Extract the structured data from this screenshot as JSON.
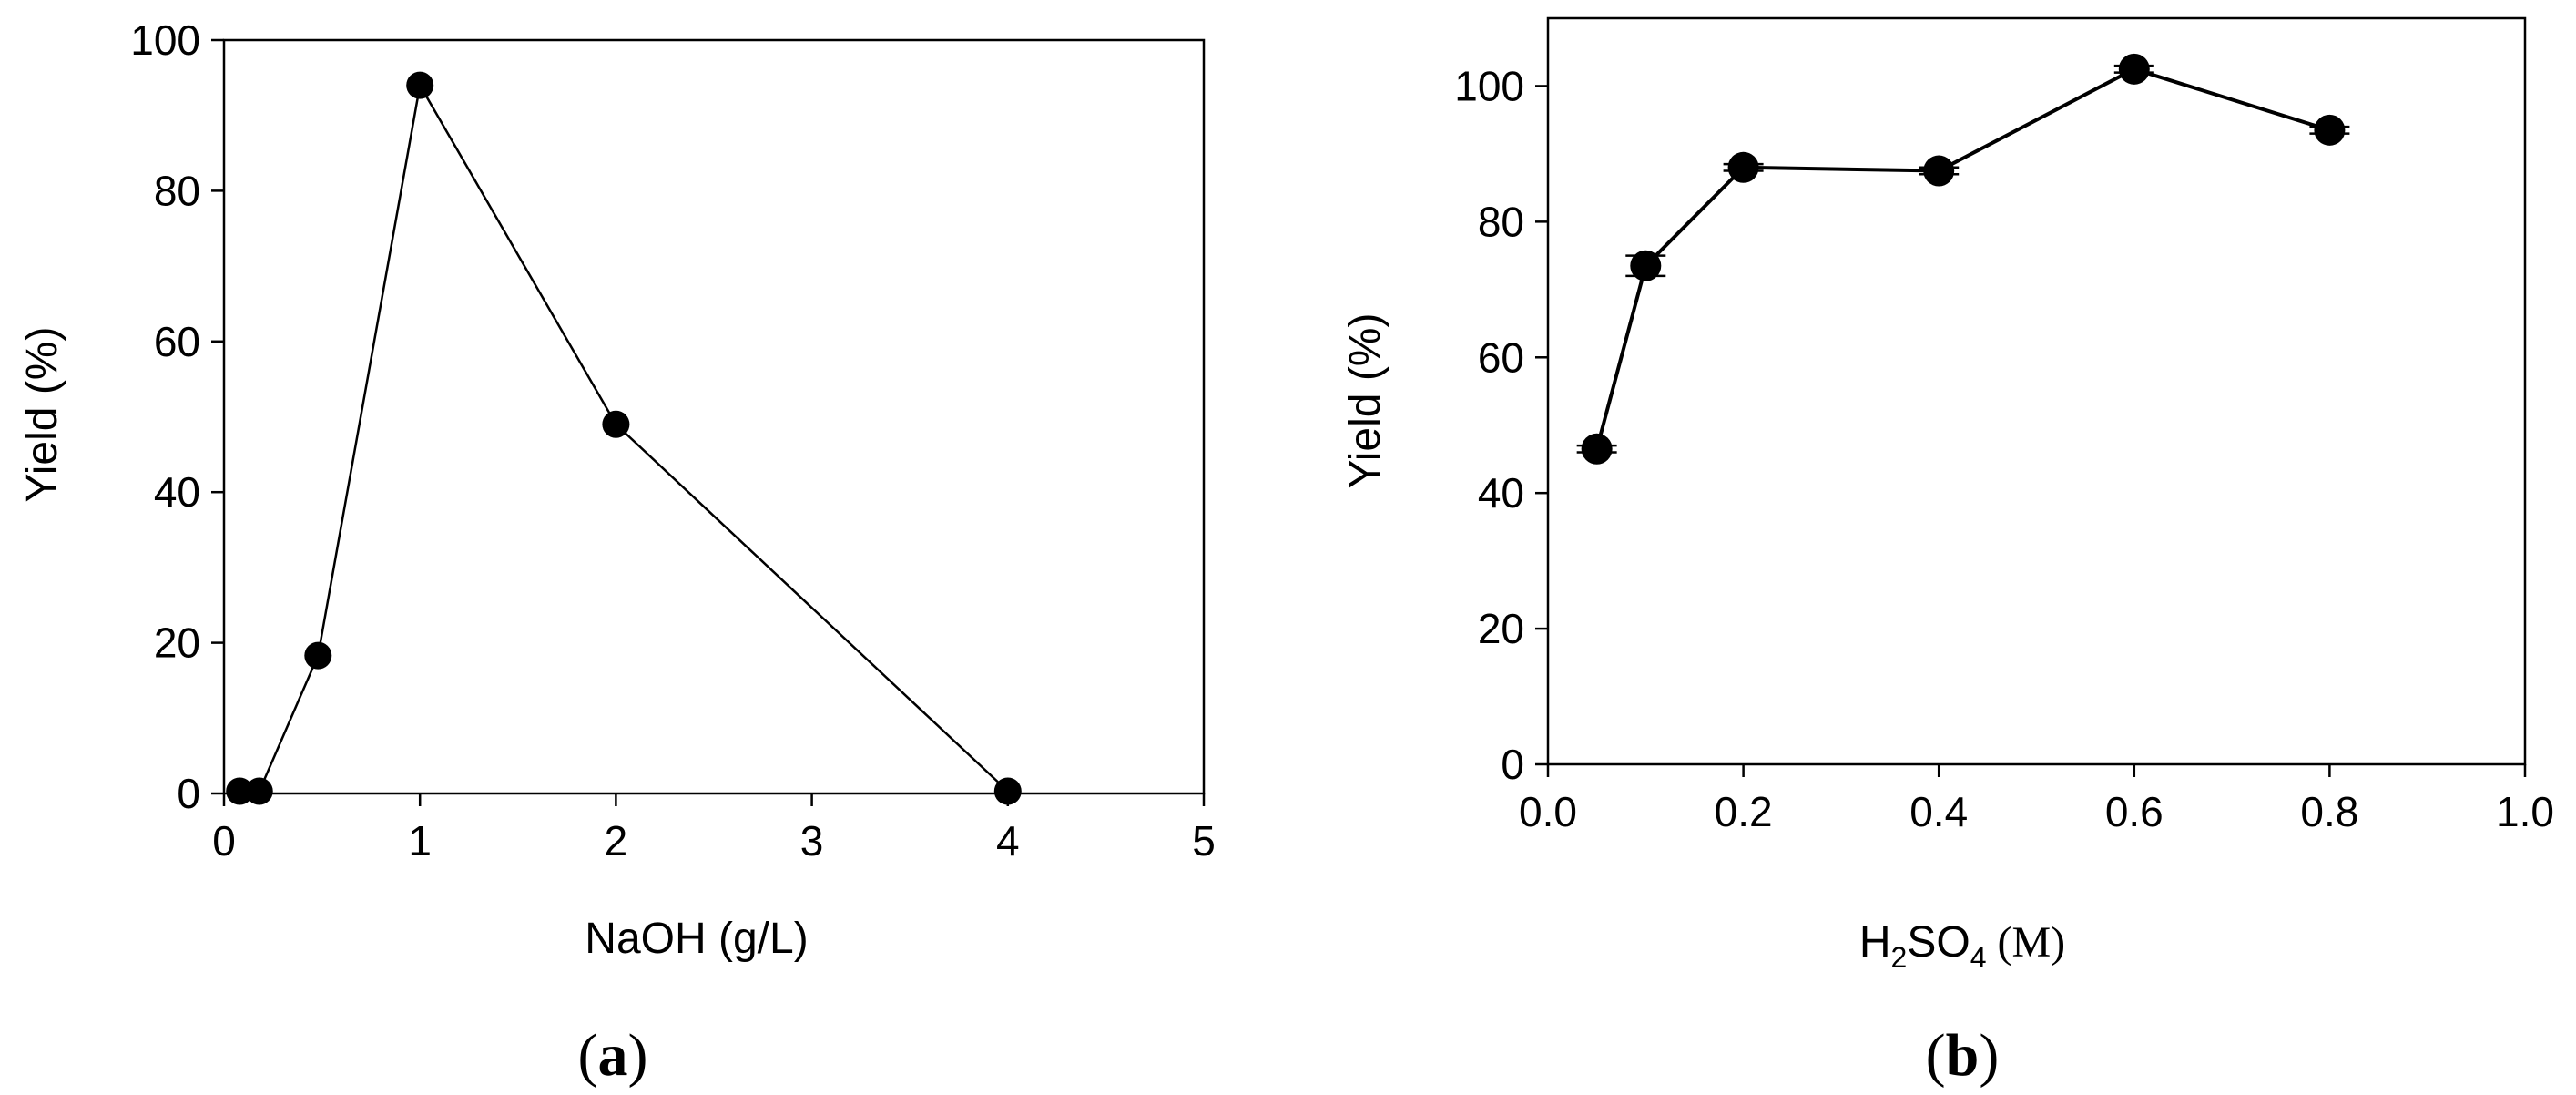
{
  "chart_data": [
    {
      "type": "line",
      "panel_label": "a",
      "xlabel": "NaOH (g/L)",
      "ylabel": "Yield (%)",
      "xlim": [
        0,
        5
      ],
      "ylim": [
        0,
        100
      ],
      "xticks": [
        0,
        1,
        2,
        3,
        4,
        5
      ],
      "yticks": [
        0,
        20,
        40,
        60,
        80,
        100
      ],
      "x_tick_labels": [
        "0",
        "1",
        "2",
        "3",
        "4",
        "5"
      ],
      "y_tick_labels": [
        "0",
        "20",
        "40",
        "60",
        "80",
        "100"
      ],
      "grid": false,
      "series": [
        {
          "x": [
            0.08,
            0.18,
            0.48,
            1.0,
            2.0,
            4.0
          ],
          "y": [
            0.3,
            0.3,
            18.3,
            94,
            49,
            0.3
          ],
          "marker": "filled-circle",
          "color": "#000000"
        }
      ]
    },
    {
      "type": "line",
      "panel_label": "b",
      "xlabel": "H2SO4 (M)",
      "xlabel_parts": {
        "chem_a": "H",
        "sub_a": "2",
        "chem_b": "SO",
        "sub_b": "4",
        "unit": " (M)"
      },
      "ylabel": "Yield (%)",
      "xlim": [
        0.0,
        1.0
      ],
      "ylim": [
        0,
        110
      ],
      "xticks": [
        0.0,
        0.2,
        0.4,
        0.6,
        0.8,
        1.0
      ],
      "yticks": [
        0,
        20,
        40,
        60,
        80,
        100
      ],
      "x_tick_labels": [
        "0.0",
        "0.2",
        "0.4",
        "0.6",
        "0.8",
        "1.0"
      ],
      "y_tick_labels": [
        "0",
        "20",
        "40",
        "60",
        "80",
        "100"
      ],
      "grid": false,
      "series": [
        {
          "x": [
            0.05,
            0.1,
            0.2,
            0.4,
            0.6,
            0.8
          ],
          "y": [
            46.5,
            73.5,
            88,
            87.5,
            102.5,
            93.5
          ],
          "error": [
            0.5,
            1.5,
            0.5,
            0.5,
            0.5,
            0.5
          ],
          "marker": "filled-circle",
          "color": "#000000"
        }
      ]
    }
  ]
}
